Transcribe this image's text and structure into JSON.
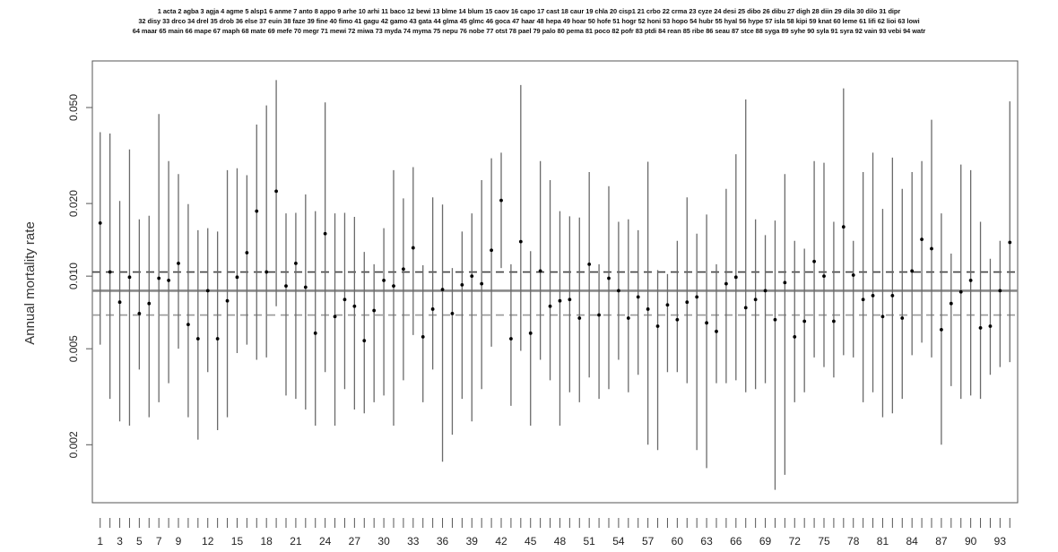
{
  "chart_data": {
    "type": "scatter",
    "legend_lines": [
      "1 acta 2 agba 3 agja 4 agme 5 alsp1 6 anme 7 anto 8 appo 9 arhe 10 arhi 11 baco 12 bewi 13 blme 14 blum 15 caov 16 capo 17 cast 18 caur 19 chla 20 cisp1 21 crbo 22 crma 23 cyze 24 desi 25 dibo 26 dibu 27 digh 28 diin 29 dila 30 dilo 31 dipr",
      "32 disy 33 drco 34 drel 35 drob 36 else 37 euin 38 faze 39 fine 40 fimo 41 gagu 42 gamo 43 gata 44 glma 45 glmc 46 goca 47 haar 48 hepa 49 hoar 50 hofe 51 hogr 52 honi 53 hopo 54 hubr 55 hyal 56 hype 57 isla 58 kipi 59 knat 60 leme 61 lifi 62 lioi 63 lowi",
      "64 maar 65 main 66 mape 67 maph 68 mate 69 mefe 70 megr 71 mewi 72 miwa 73 myda 74 myma 75 nepu 76 nobe 77 otst 78 pael 79 palo 80 pema 81 poco 82 pofr 83 ptdi 84 rean 85 ribe 86 seau 87 stce 88 syga 89 syhe 90 syla 91 syra 92 vain 93 vebi 94 watr"
    ],
    "ylabel": "Annual mortality rate",
    "y_scale": "log",
    "y_ticks": [
      0.002,
      0.005,
      0.01,
      0.02,
      0.05
    ],
    "y_tick_labels": [
      "0.002",
      "0.005",
      "0.010",
      "0.020",
      "0.050"
    ],
    "x_ticks": [
      1,
      3,
      5,
      7,
      9,
      12,
      15,
      18,
      21,
      24,
      27,
      30,
      33,
      36,
      39,
      42,
      45,
      48,
      51,
      54,
      57,
      60,
      63,
      66,
      69,
      72,
      75,
      78,
      81,
      84,
      87,
      90,
      93
    ],
    "xlim": [
      0.2,
      94.8
    ],
    "ylim": [
      0.00115,
      0.078
    ],
    "reference_lines": {
      "mean": 0.0087,
      "lower": 0.0069,
      "upper": 0.0104
    },
    "points": [
      {
        "x": 1,
        "y": 0.0166,
        "lo": 0.0052,
        "hi": 0.0395
      },
      {
        "x": 2,
        "y": 0.0104,
        "lo": 0.0031,
        "hi": 0.039
      },
      {
        "x": 3,
        "y": 0.0078,
        "lo": 0.0025,
        "hi": 0.0205
      },
      {
        "x": 4,
        "y": 0.0099,
        "lo": 0.0024,
        "hi": 0.0335
      },
      {
        "x": 5,
        "y": 0.007,
        "lo": 0.0041,
        "hi": 0.0172
      },
      {
        "x": 6,
        "y": 0.0077,
        "lo": 0.0026,
        "hi": 0.0178
      },
      {
        "x": 7,
        "y": 0.0098,
        "lo": 0.003,
        "hi": 0.047
      },
      {
        "x": 8,
        "y": 0.0096,
        "lo": 0.0036,
        "hi": 0.03
      },
      {
        "x": 9,
        "y": 0.0113,
        "lo": 0.005,
        "hi": 0.0265
      },
      {
        "x": 10,
        "y": 0.0063,
        "lo": 0.0026,
        "hi": 0.0199
      },
      {
        "x": 11,
        "y": 0.0055,
        "lo": 0.0021,
        "hi": 0.0155
      },
      {
        "x": 12,
        "y": 0.0087,
        "lo": 0.004,
        "hi": 0.0158
      },
      {
        "x": 13,
        "y": 0.0055,
        "lo": 0.0023,
        "hi": 0.0153
      },
      {
        "x": 14,
        "y": 0.0079,
        "lo": 0.0026,
        "hi": 0.0275
      },
      {
        "x": 15,
        "y": 0.0099,
        "lo": 0.0048,
        "hi": 0.028
      },
      {
        "x": 16,
        "y": 0.0125,
        "lo": 0.0052,
        "hi": 0.0262
      },
      {
        "x": 17,
        "y": 0.0186,
        "lo": 0.0045,
        "hi": 0.0425
      },
      {
        "x": 18,
        "y": 0.0104,
        "lo": 0.0046,
        "hi": 0.051
      },
      {
        "x": 19,
        "y": 0.0225,
        "lo": 0.0075,
        "hi": 0.065
      },
      {
        "x": 20,
        "y": 0.0091,
        "lo": 0.0032,
        "hi": 0.0182
      },
      {
        "x": 21,
        "y": 0.0113,
        "lo": 0.0031,
        "hi": 0.0183
      },
      {
        "x": 22,
        "y": 0.009,
        "lo": 0.0028,
        "hi": 0.0218
      },
      {
        "x": 23,
        "y": 0.0058,
        "lo": 0.0024,
        "hi": 0.0186
      },
      {
        "x": 24,
        "y": 0.015,
        "lo": 0.004,
        "hi": 0.0525
      },
      {
        "x": 25,
        "y": 0.0068,
        "lo": 0.0024,
        "hi": 0.0182
      },
      {
        "x": 26,
        "y": 0.008,
        "lo": 0.0034,
        "hi": 0.0183
      },
      {
        "x": 27,
        "y": 0.0075,
        "lo": 0.0028,
        "hi": 0.0176
      },
      {
        "x": 28,
        "y": 0.0054,
        "lo": 0.0027,
        "hi": 0.0126
      },
      {
        "x": 29,
        "y": 0.0072,
        "lo": 0.003,
        "hi": 0.0112
      },
      {
        "x": 30,
        "y": 0.0096,
        "lo": 0.0032,
        "hi": 0.0158
      },
      {
        "x": 31,
        "y": 0.0091,
        "lo": 0.0024,
        "hi": 0.0275
      },
      {
        "x": 32,
        "y": 0.0107,
        "lo": 0.0037,
        "hi": 0.021
      },
      {
        "x": 33,
        "y": 0.0131,
        "lo": 0.0057,
        "hi": 0.0283
      },
      {
        "x": 34,
        "y": 0.0056,
        "lo": 0.003,
        "hi": 0.0111
      },
      {
        "x": 35,
        "y": 0.0073,
        "lo": 0.0041,
        "hi": 0.0212
      },
      {
        "x": 36,
        "y": 0.0088,
        "lo": 0.0017,
        "hi": 0.0198
      },
      {
        "x": 37,
        "y": 0.007,
        "lo": 0.0022,
        "hi": 0.0108
      },
      {
        "x": 38,
        "y": 0.0092,
        "lo": 0.0031,
        "hi": 0.0153
      },
      {
        "x": 39,
        "y": 0.01,
        "lo": 0.0025,
        "hi": 0.0182
      },
      {
        "x": 40,
        "y": 0.0093,
        "lo": 0.0034,
        "hi": 0.025
      },
      {
        "x": 41,
        "y": 0.0128,
        "lo": 0.0051,
        "hi": 0.0308
      },
      {
        "x": 42,
        "y": 0.0206,
        "lo": 0.0108,
        "hi": 0.0325
      },
      {
        "x": 43,
        "y": 0.0055,
        "lo": 0.0029,
        "hi": 0.0112
      },
      {
        "x": 44,
        "y": 0.0139,
        "lo": 0.0049,
        "hi": 0.062
      },
      {
        "x": 45,
        "y": 0.0058,
        "lo": 0.0024,
        "hi": 0.0127
      },
      {
        "x": 46,
        "y": 0.0105,
        "lo": 0.0045,
        "hi": 0.03
      },
      {
        "x": 47,
        "y": 0.0075,
        "lo": 0.0037,
        "hi": 0.025
      },
      {
        "x": 48,
        "y": 0.0079,
        "lo": 0.0024,
        "hi": 0.0186
      },
      {
        "x": 49,
        "y": 0.008,
        "lo": 0.0033,
        "hi": 0.0177
      },
      {
        "x": 50,
        "y": 0.0067,
        "lo": 0.003,
        "hi": 0.0175
      },
      {
        "x": 51,
        "y": 0.0112,
        "lo": 0.0038,
        "hi": 0.027
      },
      {
        "x": 52,
        "y": 0.0069,
        "lo": 0.0031,
        "hi": 0.0112
      },
      {
        "x": 53,
        "y": 0.0098,
        "lo": 0.0034,
        "hi": 0.0236
      },
      {
        "x": 54,
        "y": 0.0087,
        "lo": 0.0045,
        "hi": 0.0168
      },
      {
        "x": 55,
        "y": 0.0067,
        "lo": 0.0033,
        "hi": 0.0172
      },
      {
        "x": 56,
        "y": 0.0082,
        "lo": 0.0039,
        "hi": 0.0155
      },
      {
        "x": 57,
        "y": 0.0073,
        "lo": 0.002,
        "hi": 0.0298
      },
      {
        "x": 58,
        "y": 0.0062,
        "lo": 0.0019,
        "hi": 0.0106
      },
      {
        "x": 59,
        "y": 0.0076,
        "lo": 0.004,
        "hi": 0.0102
      },
      {
        "x": 60,
        "y": 0.0066,
        "lo": 0.004,
        "hi": 0.014
      },
      {
        "x": 61,
        "y": 0.0078,
        "lo": 0.0036,
        "hi": 0.0212
      },
      {
        "x": 62,
        "y": 0.0082,
        "lo": 0.0019,
        "hi": 0.015
      },
      {
        "x": 63,
        "y": 0.0064,
        "lo": 0.0016,
        "hi": 0.018
      },
      {
        "x": 64,
        "y": 0.0059,
        "lo": 0.0036,
        "hi": 0.0112
      },
      {
        "x": 65,
        "y": 0.0093,
        "lo": 0.0036,
        "hi": 0.023
      },
      {
        "x": 66,
        "y": 0.0099,
        "lo": 0.0037,
        "hi": 0.032
      },
      {
        "x": 67,
        "y": 0.0074,
        "lo": 0.0033,
        "hi": 0.054
      },
      {
        "x": 68,
        "y": 0.008,
        "lo": 0.0034,
        "hi": 0.0172
      },
      {
        "x": 69,
        "y": 0.0087,
        "lo": 0.0036,
        "hi": 0.0148
      },
      {
        "x": 70,
        "y": 0.0066,
        "lo": 0.0013,
        "hi": 0.017
      },
      {
        "x": 71,
        "y": 0.0094,
        "lo": 0.0015,
        "hi": 0.0265
      },
      {
        "x": 72,
        "y": 0.0056,
        "lo": 0.003,
        "hi": 0.014
      },
      {
        "x": 73,
        "y": 0.0065,
        "lo": 0.0033,
        "hi": 0.013
      },
      {
        "x": 74,
        "y": 0.0115,
        "lo": 0.0046,
        "hi": 0.03
      },
      {
        "x": 75,
        "y": 0.01,
        "lo": 0.0042,
        "hi": 0.0295
      },
      {
        "x": 76,
        "y": 0.0065,
        "lo": 0.0038,
        "hi": 0.0168
      },
      {
        "x": 77,
        "y": 0.016,
        "lo": 0.0047,
        "hi": 0.06
      },
      {
        "x": 78,
        "y": 0.0101,
        "lo": 0.0046,
        "hi": 0.014
      },
      {
        "x": 79,
        "y": 0.008,
        "lo": 0.003,
        "hi": 0.027
      },
      {
        "x": 80,
        "y": 0.0083,
        "lo": 0.0033,
        "hi": 0.0325
      },
      {
        "x": 81,
        "y": 0.0068,
        "lo": 0.0026,
        "hi": 0.019
      },
      {
        "x": 82,
        "y": 0.0083,
        "lo": 0.0027,
        "hi": 0.031
      },
      {
        "x": 83,
        "y": 0.0067,
        "lo": 0.0031,
        "hi": 0.023
      },
      {
        "x": 84,
        "y": 0.0105,
        "lo": 0.0047,
        "hi": 0.027
      },
      {
        "x": 85,
        "y": 0.0142,
        "lo": 0.0053,
        "hi": 0.03
      },
      {
        "x": 86,
        "y": 0.013,
        "lo": 0.0046,
        "hi": 0.0445
      },
      {
        "x": 87,
        "y": 0.006,
        "lo": 0.002,
        "hi": 0.0182
      },
      {
        "x": 88,
        "y": 0.0077,
        "lo": 0.0035,
        "hi": 0.0124
      },
      {
        "x": 89,
        "y": 0.0086,
        "lo": 0.0031,
        "hi": 0.029
      },
      {
        "x": 90,
        "y": 0.0096,
        "lo": 0.0032,
        "hi": 0.0275
      },
      {
        "x": 91,
        "y": 0.0061,
        "lo": 0.0031,
        "hi": 0.0168
      },
      {
        "x": 92,
        "y": 0.0062,
        "lo": 0.0039,
        "hi": 0.0118
      },
      {
        "x": 93,
        "y": 0.0087,
        "lo": 0.0042,
        "hi": 0.014
      },
      {
        "x": 94,
        "y": 0.0138,
        "lo": 0.0044,
        "hi": 0.053
      }
    ]
  }
}
